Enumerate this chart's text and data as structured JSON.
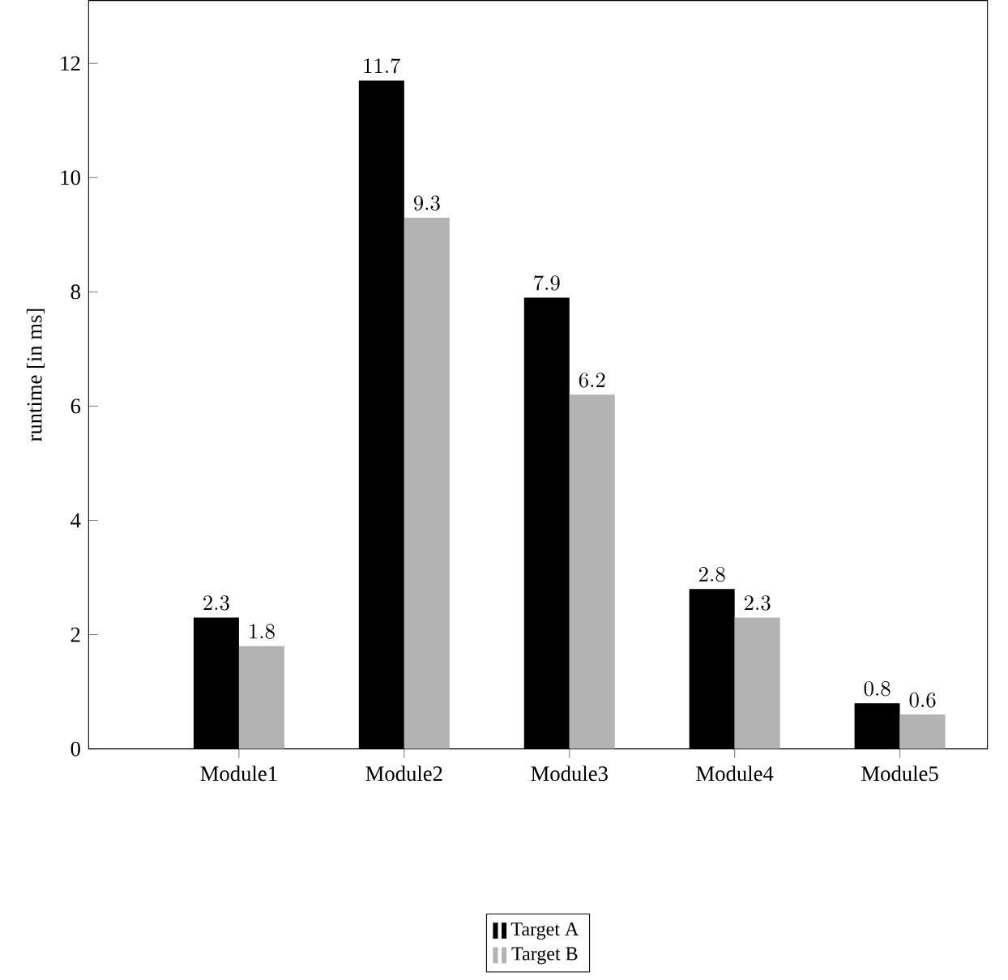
{
  "chart_data": {
    "type": "bar",
    "ylabel": "runtime [in ms]",
    "categories": [
      "Module1",
      "Module2",
      "Module3",
      "Module4",
      "Module5"
    ],
    "series": [
      {
        "name": "Target A",
        "color": "#000000",
        "values": [
          2.3,
          11.7,
          7.9,
          2.8,
          0.8
        ]
      },
      {
        "name": "Target B",
        "color": "#b3b3b3",
        "values": [
          1.8,
          9.3,
          6.2,
          2.3,
          0.6
        ]
      }
    ],
    "ylim": [
      0,
      13.1
    ],
    "yticks": [
      0,
      2,
      4,
      6,
      8,
      10,
      12
    ],
    "data_labels": true,
    "legend": "bottom",
    "grid": false
  }
}
